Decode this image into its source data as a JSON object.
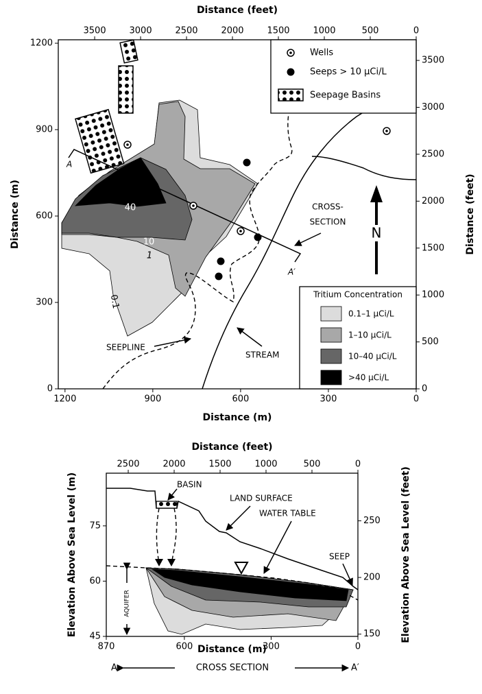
{
  "map": {
    "top_axis": {
      "title": "Distance (feet)",
      "range": [
        3896,
        0
      ],
      "ticks": [
        3500,
        3000,
        2500,
        2000,
        1500,
        1000,
        500,
        0
      ]
    },
    "bottom_axis": {
      "title": "Distance (m)",
      "range": [
        1223,
        0
      ],
      "ticks": [
        1200,
        900,
        600,
        300,
        0
      ]
    },
    "left_axis": {
      "title": "Distance (m)",
      "range": [
        0,
        1212
      ],
      "ticks": [
        0,
        300,
        600,
        900,
        1200
      ]
    },
    "right_axis": {
      "title": "Distance (feet)",
      "range": [
        0,
        3720
      ],
      "ticks": [
        0,
        500,
        1000,
        1500,
        2000,
        2500,
        3000,
        3500
      ]
    },
    "legend": [
      "Wells",
      "Seeps > 10 µCi/L",
      "Seepage Basins"
    ],
    "concentration_legend": {
      "title": "Tritium Concentration",
      "items": [
        "0.1–1 µCi/L",
        "1–10 µCi/L",
        "10–40 µCi/L",
        ">40 µCi/L"
      ]
    },
    "labels": {
      "a": "A",
      "a_prime": "A′",
      "cross_section": [
        "CROSS-",
        "SECTION"
      ],
      "north": "N",
      "seepline": "SEEPLINE",
      "stream": "STREAM",
      "contours": [
        "40",
        "10",
        "1",
        "0.1"
      ]
    }
  },
  "section": {
    "top_axis": {
      "title": "Distance (feet)",
      "range": [
        2739,
        0
      ],
      "ticks": [
        2500,
        2000,
        1500,
        1000,
        500,
        0
      ]
    },
    "bottom_axis": {
      "title": "Distance (m)",
      "range": [
        870,
        0
      ],
      "ticks": [
        870,
        600,
        300,
        0
      ]
    },
    "left_axis": {
      "title": "Elevation Above Sea Level (m)",
      "range": [
        45,
        89.3
      ],
      "ticks": [
        45,
        60,
        75
      ]
    },
    "right_axis": {
      "title": "Elevation Above Sea Level (feet)",
      "range": [
        148,
        292
      ],
      "ticks": [
        150,
        200,
        250
      ]
    },
    "labels": {
      "basin": "BASIN",
      "land_surface": "LAND SURFACE",
      "water_table": "WATER TABLE",
      "seep": "SEEP",
      "aquifer": "AQUIFER"
    },
    "footer": {
      "start": "A",
      "title": "CROSS SECTION",
      "end": "A′"
    }
  }
}
